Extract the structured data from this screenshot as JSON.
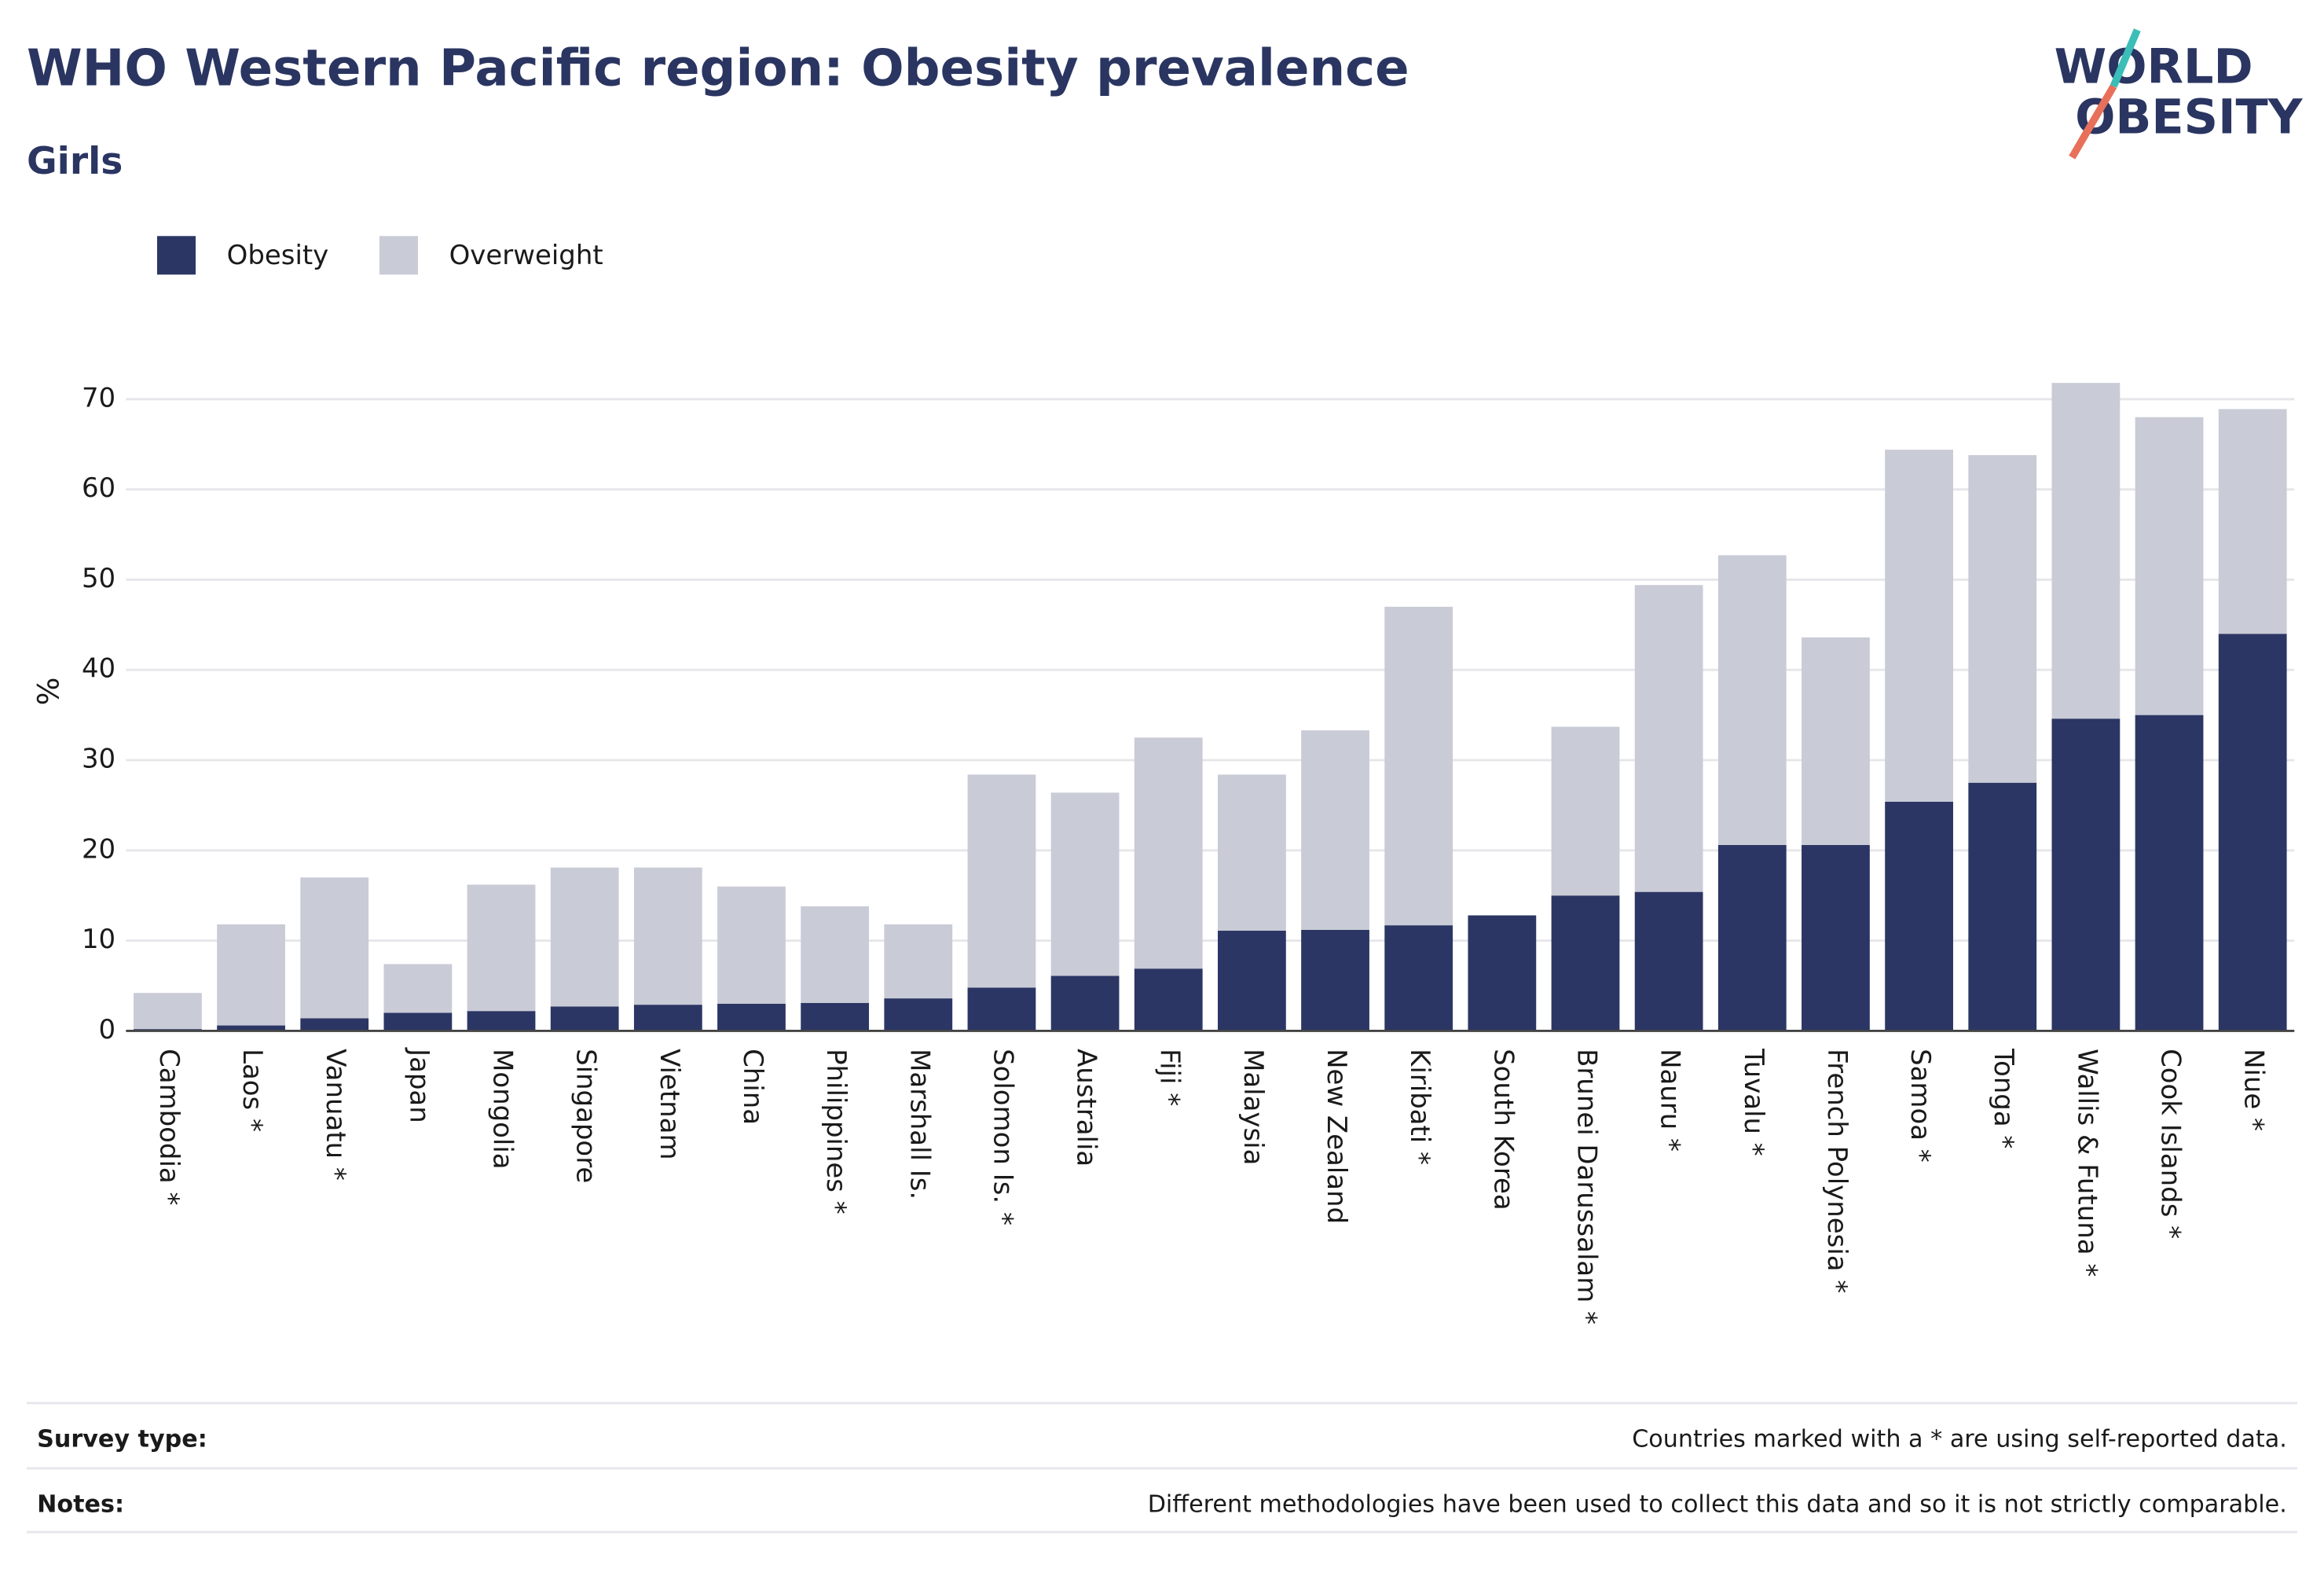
{
  "chart_data": {
    "type": "stacked_bar",
    "title": "WHO Western Pacific region: Obesity prevalence",
    "subtitle": "Girls",
    "logo": [
      "WORLD",
      "OBESITY"
    ],
    "y_label": "%",
    "categories": [
      "Cambodia *",
      "Laos *",
      "Vanuatu *",
      "Japan",
      "Mongolia",
      "Singapore",
      "Vietnam",
      "China",
      "Philippines *",
      "Marshall Is.",
      "Solomon Is. *",
      "Australia",
      "Fiji *",
      "Malaysia",
      "New Zealand",
      "Kiribati *",
      "South Korea",
      "Brunei Darussalam *",
      "Nauru *",
      "Tuvalu *",
      "French Polynesia *",
      "Samoa *",
      "Tonga *",
      "Wallis & Futuna *",
      "Cook Islands *",
      "Niue *"
    ],
    "series": [
      {
        "name": "Obesity",
        "color": "#2b3664",
        "values": [
          0.2,
          0.6,
          1.4,
          2.0,
          2.2,
          2.7,
          2.9,
          3.0,
          3.1,
          3.6,
          4.8,
          6.1,
          6.9,
          11.1,
          11.2,
          11.7,
          12.8,
          15.0,
          15.4,
          20.6,
          20.6,
          25.4,
          27.5,
          34.6,
          35.0,
          44.0
        ]
      },
      {
        "name": "Overweight",
        "color": "#c9cbd6",
        "values": [
          4.0,
          11.2,
          15.6,
          5.4,
          14.0,
          15.4,
          15.2,
          13.0,
          10.7,
          8.2,
          23.6,
          20.3,
          25.6,
          17.3,
          22.1,
          35.3,
          0,
          18.7,
          34.0,
          32.1,
          23.0,
          39.0,
          36.3,
          37.2,
          33.0,
          24.9
        ]
      }
    ],
    "ylim": [
      0,
      75
    ],
    "yticks": [
      0,
      10,
      20,
      30,
      40,
      50,
      60,
      70
    ],
    "grid": true,
    "legend": "top-left",
    "footer": [
      {
        "label": "Survey type:",
        "text": "Countries marked with a * are using self-reported data."
      },
      {
        "label": "Notes:",
        "text": "Different methodologies have been used to collect this data and so it is not strictly comparable."
      }
    ]
  }
}
